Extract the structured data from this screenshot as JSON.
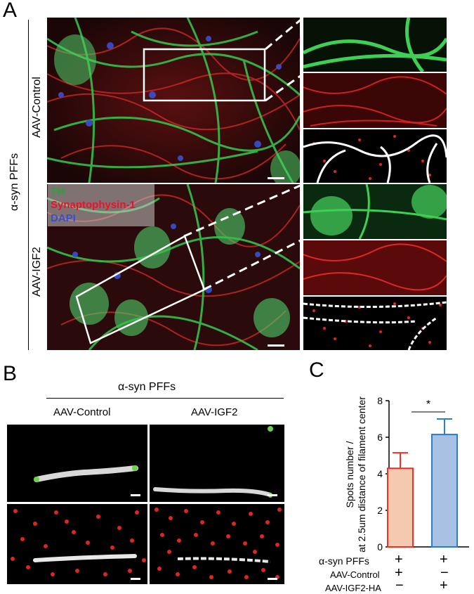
{
  "panels": {
    "a": {
      "letter": "A",
      "group_label": "α-syn PFFs",
      "row1_label": "AAV-Control",
      "row2_label": "AAV-IGF2",
      "legend": [
        {
          "text": "TH",
          "color": "#1fa83c"
        },
        {
          "text": "Synaptophysin-1",
          "color": "#e8122a"
        },
        {
          "text": "DAPI",
          "color": "#3a4fd0"
        }
      ]
    },
    "b": {
      "letter": "B",
      "header": "α-syn PFFs",
      "col1_label": "AAV-Control",
      "col2_label": "AAV-IGF2"
    },
    "c": {
      "letter": "C"
    }
  },
  "chart_data": {
    "type": "bar",
    "categories": [
      "AAV-Control",
      "AAV-IGF2-HA"
    ],
    "values": [
      4.3,
      6.15
    ],
    "errors": [
      0.85,
      0.85
    ],
    "ylabel": "Spots number / at 2.5um distance of filament center",
    "ylabel_lines": [
      "Spots number /",
      "at 2.5um distance of filament center"
    ],
    "ylim": [
      0,
      8
    ],
    "yticks": [
      "0",
      "2",
      "4",
      "6",
      "8"
    ],
    "significance": "*",
    "bar_fill_colors": [
      "#f5c8b0",
      "#a9c1e2"
    ],
    "bar_edge_colors": [
      "#e8322a",
      "#2a7ec2"
    ],
    "conditions": [
      {
        "label": "α-syn PFFs",
        "values": [
          "+",
          "+"
        ]
      },
      {
        "label": "AAV-Control",
        "values": [
          "+",
          "−"
        ]
      },
      {
        "label": "AAV-IGF2-HA",
        "values": [
          "−",
          "+"
        ]
      }
    ]
  }
}
